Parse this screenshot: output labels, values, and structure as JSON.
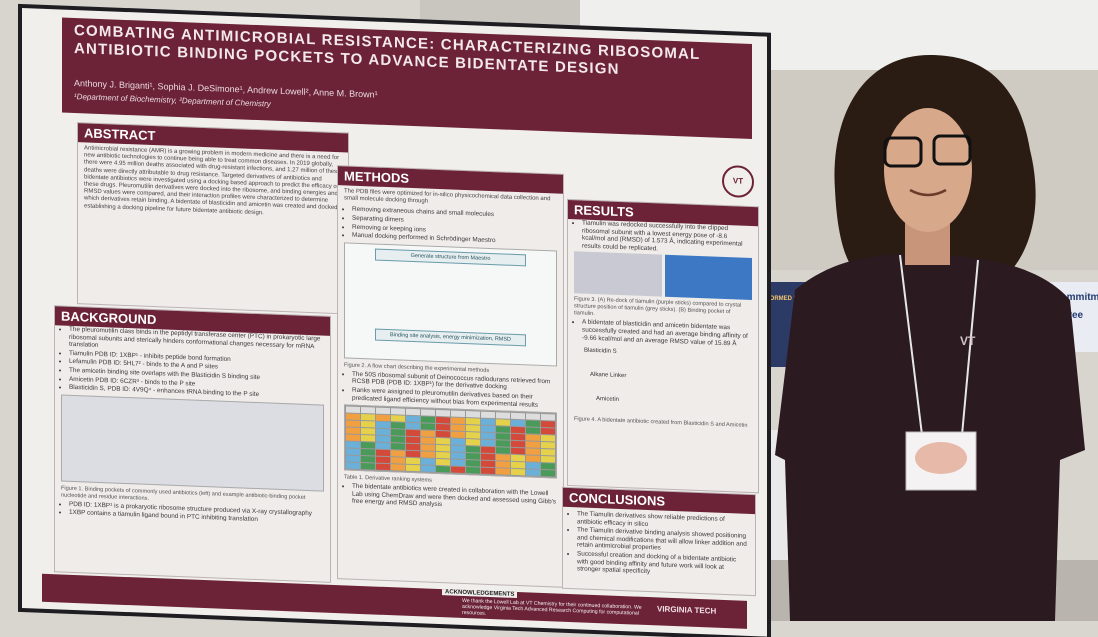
{
  "poster": {
    "title": "COMBATING ANTIMICROBIAL RESISTANCE: CHARACTERIZING RIBOSOMAL ANTIBIOTIC BINDING POCKETS TO ADVANCE BIDENTATE DESIGN",
    "authors": "Anthony J. Briganti¹, Sophia J. DeSimone¹, Andrew Lowell², Anne M. Brown¹",
    "affiliations": "¹Department of Biochemistry, ²Department of Chemistry",
    "abstract": {
      "heading": "ABSTRACT",
      "text": "Antimicrobial resistance (AMR) is a growing problem in modern medicine and there is a need for new antibiotic technologies to continue being able to treat common diseases. In 2019 globally, there were 4.95 million deaths associated with drug-resistant infections, and 1.27 million of these deaths were directly attributable to drug resistance. Targeted derivatives of antibiotics and bidentate antibiotics were investigated using a docking based approach to predict the efficacy of these drugs. Pleuromutilin derivatives were docked into the ribosome, and binding energies and RMSD values were compared, and their interaction profiles were characterized to determine which derivatives retain binding. A bidentate of blasticidin and amicetin was created and docked, establishing a docking pipeline for future bidentate antibiotic design."
    },
    "background": {
      "heading": "BACKGROUND",
      "items": [
        "The pleuromutilin class binds in the peptidyl transferase center (PTC) in prokaryotic large ribosomal subunits and sterically hinders conformational changes necessary for mRNA translation",
        "Tiamulin PDB ID: 1XBP¹ - inhibits peptide bond formation",
        "Lefamulin PDB ID: 5HL7² - binds to the A and P sites",
        "The amicetin binding site overlaps with the Blasticidin S binding site",
        "Amicetin PDB ID: 6CZR³ - binds to the P site",
        "Blasticidin S, PDB ID: 4V9Q⁴ - enhances tRNA binding to the P site"
      ],
      "caption": "Figure 1. Binding pockets of commonly used antibiotics (left) and example antibiotic-binding pocket nucleotide and residue interactions.",
      "items2": [
        "PDB ID: 1XBP¹ is a prokaryotic ribosome structure produced via X-ray crystallography",
        "1XBP contains a tiamulin ligand bound in PTC inhibiting translation"
      ]
    },
    "methods": {
      "heading": "METHODS",
      "intro": "The PDB files were optimized for in-silico physicochemical data collection and small molecule docking through",
      "items": [
        "Removing extraneous chains and small molecules",
        "Separating dimers",
        "Removing or keeping ions",
        "Manual docking performed in Schrödinger Maestro"
      ],
      "flow_top": "Generate structure from Maestro",
      "flow_bottom": "Binding site analysis, energy minimization, RMSD",
      "caption": "Figure 2. A flow chart describing the experimental methods",
      "items2": [
        "The 50S ribosomal subunit of Deinococcus radiodurans retrieved from RCSB PDB (PDB ID: 1XBP¹) for the derivative docking",
        "Ranks were assigned to pleuromutilin derivatives based on their predicated ligand efficiency without bias from experimental results"
      ],
      "table_caption": "Table 1. Derivative ranking systems",
      "items3": [
        "The bidentate antibiotics were created in collaboration with the Lowell Lab using ChemDraw and were then docked and assessed using Gibb's free energy and RMSD analysis"
      ]
    },
    "results": {
      "heading": "RESULTS",
      "items": [
        "Tiamulin was redocked successfully into the clipped ribosomal subunit with a lowest energy pose of -8.6 kcal/mol and (RMSD) of 1.573 Å, indicating experimental results could be replicated."
      ],
      "caption": "Figure 3. (A) Re-dock of tiamulin (purple sticks) compared to crystal structure position of tiamulin (grey sticks). (B) Binding pocket of tiamulin.",
      "items2": [
        "A bidentate of blasticidin and amicetin bidentate was successfully created and had an average binding affinity of -9.66 kcal/mol and an average RMSD value of 15.89 Å"
      ],
      "labels": [
        "Blasticidin S",
        "Alkane Linker",
        "Amicetin"
      ],
      "caption2": "Figure 4. A bidentate antibiotic created from Blasticidin S and Amicetin"
    },
    "conclusions": {
      "heading": "CONCLUSIONS",
      "items": [
        "The Tiamulin derivatives show reliable predictions of antibiotic efficacy in silico",
        "The Tiamulin derivative binding analysis showed positioning and chemical modifications that will allow linker addition and retain antimicrobial properties",
        "Successful creation and docking of a bidentate antibiotic with good binding affinity and future work will look at stronger spatial specificity"
      ]
    },
    "acknowledgements": {
      "heading": "ACKNOWLEDGEMENTS",
      "text": "We thank the Lowell Lab at VT Chemistry for their continued collaboration. We acknowledge Virginia Tech Advanced Research Computing for computational resources."
    },
    "logo": "VIRGINIA TECH",
    "seal": "VT"
  },
  "screen": {
    "left": "INFORMED ENGINEERING EVENTS",
    "right_1": "commitm",
    "right_2": "Free"
  }
}
